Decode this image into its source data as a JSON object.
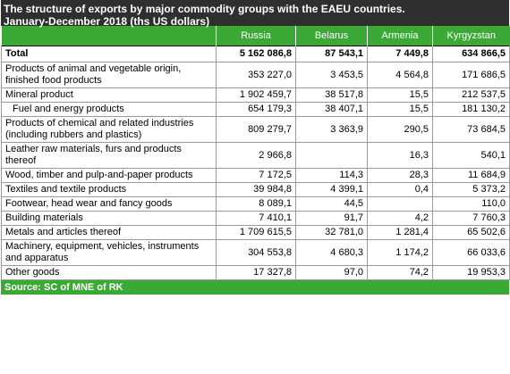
{
  "title": {
    "line1": "The structure of exports by major commodity groups with the EAEU countries.",
    "line2": "January-December 2018 (ths US dollars)"
  },
  "table": {
    "columns": [
      "",
      "Russia",
      "Belarus",
      "Armenia",
      "Kyrgyzstan"
    ],
    "rows": [
      {
        "label": "Total",
        "russia": "5 162 086,8",
        "belarus": "87 543,1",
        "armenia": "7 449,8",
        "kyrgyzstan": "634 866,5"
      },
      {
        "label": "Products of animal and vegetable origin, finished food products",
        "russia": "353 227,0",
        "belarus": "3 453,5",
        "armenia": "4 564,8",
        "kyrgyzstan": "171 686,5"
      },
      {
        "label": "Mineral product",
        "russia": "1 902 459,7",
        "belarus": "38 517,8",
        "armenia": "15,5",
        "kyrgyzstan": "212 537,5"
      },
      {
        "label": "Fuel and energy products",
        "russia": "654 179,3",
        "belarus": "38 407,1",
        "armenia": "15,5",
        "kyrgyzstan": "181 130,2"
      },
      {
        "label": "Products of chemical and related industries (including rubbers and plastics)",
        "russia": "809 279,7",
        "belarus": "3 363,9",
        "armenia": "290,5",
        "kyrgyzstan": "73 684,5"
      },
      {
        "label": "Leather raw materials, furs and products thereof",
        "russia": "2 966,8",
        "belarus": "",
        "armenia": "16,3",
        "kyrgyzstan": "540,1"
      },
      {
        "label": "Wood, timber and pulp-and-paper products",
        "russia": "7 172,5",
        "belarus": "114,3",
        "armenia": "28,3",
        "kyrgyzstan": "11 684,9"
      },
      {
        "label": "Textiles and textile products",
        "russia": "39 984,8",
        "belarus": "4 399,1",
        "armenia": "0,4",
        "kyrgyzstan": "5 373,2"
      },
      {
        "label": "Footwear, head wear and fancy goods",
        "russia": "8 089,1",
        "belarus": "44,5",
        "armenia": "",
        "kyrgyzstan": "110,0"
      },
      {
        "label": "Building materials",
        "russia": "7 410,1",
        "belarus": "91,7",
        "armenia": "4,2",
        "kyrgyzstan": "7 760,3"
      },
      {
        "label": "Metals and articles thereof",
        "russia": "1 709 615,5",
        "belarus": "32 781,0",
        "armenia": "1 281,4",
        "kyrgyzstan": "65 502,6"
      },
      {
        "label": "Machinery, equipment, vehicles, instruments and apparatus",
        "russia": "304 553,8",
        "belarus": "4 680,3",
        "armenia": "1 174,2",
        "kyrgyzstan": "66 033,6"
      },
      {
        "label": "Other goods",
        "russia": "17 327,8",
        "belarus": "97,0",
        "armenia": "74,2",
        "kyrgyzstan": "19 953,3"
      }
    ]
  },
  "source": "Source: SC of MNE of RK",
  "colors": {
    "header_bg": "#2f2f2f",
    "accent_green": "#3aa935"
  }
}
